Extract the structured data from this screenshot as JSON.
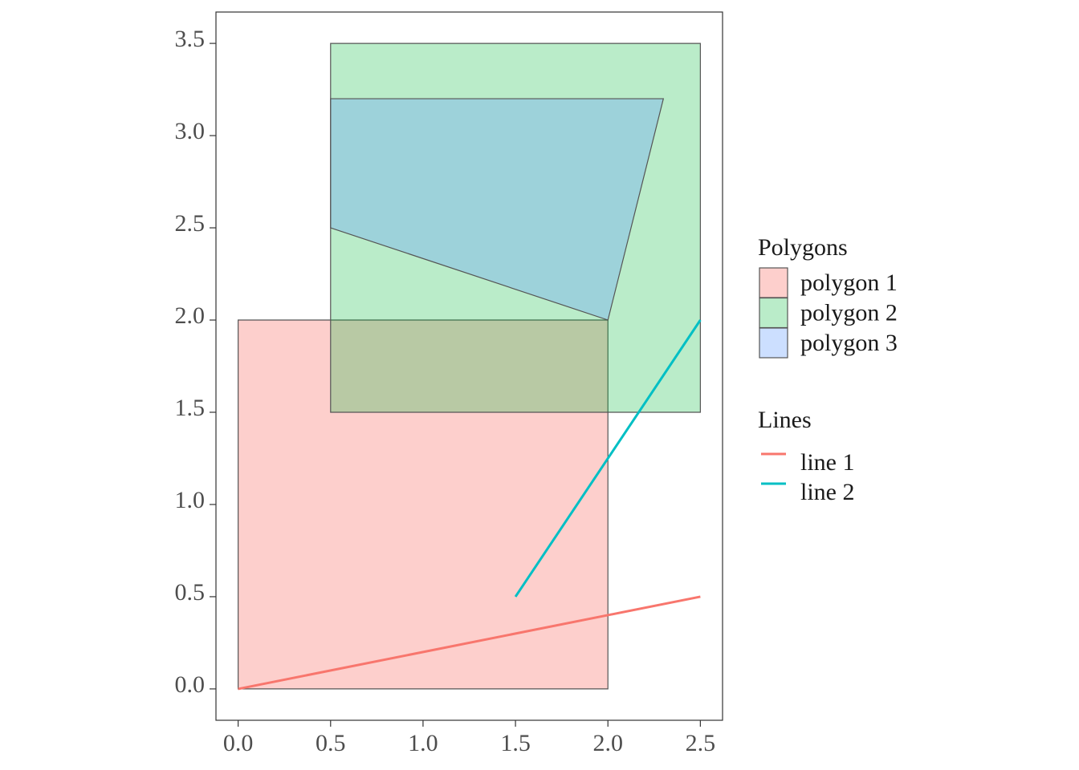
{
  "chart_data": {
    "type": "map",
    "xlim": [
      -0.12,
      2.62
    ],
    "ylim": [
      -0.17,
      3.67
    ],
    "x_ticks": [
      {
        "value": 0.0,
        "label": "0.0"
      },
      {
        "value": 0.5,
        "label": "0.5"
      },
      {
        "value": 1.0,
        "label": "1.0"
      },
      {
        "value": 1.5,
        "label": "1.5"
      },
      {
        "value": 2.0,
        "label": "2.0"
      },
      {
        "value": 2.5,
        "label": "2.5"
      }
    ],
    "y_ticks": [
      {
        "value": 0.0,
        "label": "0.0"
      },
      {
        "value": 0.5,
        "label": "0.5"
      },
      {
        "value": 1.0,
        "label": "1.0"
      },
      {
        "value": 1.5,
        "label": "1.5"
      },
      {
        "value": 2.0,
        "label": "2.0"
      },
      {
        "value": 2.5,
        "label": "2.5"
      },
      {
        "value": 3.0,
        "label": "3.0"
      },
      {
        "value": 3.5,
        "label": "3.5"
      }
    ],
    "grid": false,
    "legend_position": "right",
    "polygon_legend_title": "Polygons",
    "line_legend_title": "Lines",
    "polygons": [
      {
        "name": "polygon 1",
        "fill": "#F8766D",
        "opacity": 0.35,
        "points": [
          [
            0,
            0
          ],
          [
            2,
            0
          ],
          [
            2,
            2
          ],
          [
            0,
            2
          ]
        ]
      },
      {
        "name": "polygon 2",
        "fill": "#00BA38",
        "opacity": 0.27,
        "points": [
          [
            0.5,
            1.5
          ],
          [
            2.5,
            1.5
          ],
          [
            2.5,
            3.5
          ],
          [
            0.5,
            3.5
          ]
        ]
      },
      {
        "name": "polygon 3",
        "fill": "#619CFF",
        "opacity": 0.32,
        "points": [
          [
            0.5,
            2.5
          ],
          [
            2,
            2
          ],
          [
            2.3,
            3.2
          ],
          [
            0.5,
            3.2
          ]
        ]
      }
    ],
    "lines": [
      {
        "name": "line 1",
        "color": "#F8766D",
        "points": [
          [
            0,
            0
          ],
          [
            2.5,
            0.5
          ]
        ]
      },
      {
        "name": "line 2",
        "color": "#00BFC4",
        "points": [
          [
            1.5,
            0.5
          ],
          [
            2.5,
            2
          ]
        ]
      }
    ]
  }
}
